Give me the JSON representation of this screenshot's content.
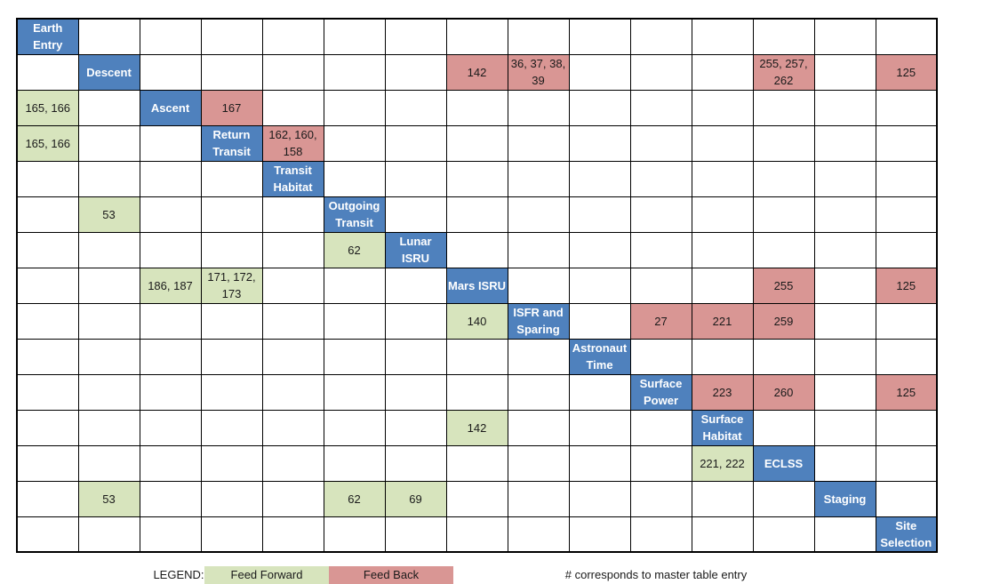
{
  "colors": {
    "diagonal": "#4f81bd",
    "feed_forward": "#d7e4bd",
    "feed_back": "#d99694"
  },
  "elements": [
    "Earth Entry",
    "Descent",
    "Ascent",
    "Return Transit",
    "Transit Habitat",
    "Outgoing Transit",
    "Lunar ISRU",
    "Mars ISRU",
    "ISFR and Sparing",
    "Astronaut Time",
    "Surface Power",
    "Surface Habitat",
    "ECLSS",
    "Staging",
    "Site Selection"
  ],
  "cells": [
    {
      "row": 1,
      "col": 7,
      "text": "142",
      "type": "feed_back"
    },
    {
      "row": 1,
      "col": 8,
      "text": "36, 37, 38, 39",
      "type": "feed_back"
    },
    {
      "row": 1,
      "col": 12,
      "text": "255, 257, 262",
      "type": "feed_back"
    },
    {
      "row": 1,
      "col": 14,
      "text": "125",
      "type": "feed_back"
    },
    {
      "row": 2,
      "col": 0,
      "text": "165, 166",
      "type": "feed_forward"
    },
    {
      "row": 2,
      "col": 3,
      "text": "167",
      "type": "feed_back"
    },
    {
      "row": 3,
      "col": 0,
      "text": "165, 166",
      "type": "feed_forward"
    },
    {
      "row": 3,
      "col": 4,
      "text": "162, 160, 158",
      "type": "feed_back"
    },
    {
      "row": 5,
      "col": 1,
      "text": "53",
      "type": "feed_forward"
    },
    {
      "row": 6,
      "col": 5,
      "text": "62",
      "type": "feed_forward"
    },
    {
      "row": 7,
      "col": 2,
      "text": "186, 187",
      "type": "feed_forward"
    },
    {
      "row": 7,
      "col": 3,
      "text": "171, 172, 173",
      "type": "feed_forward"
    },
    {
      "row": 7,
      "col": 12,
      "text": "255",
      "type": "feed_back"
    },
    {
      "row": 7,
      "col": 14,
      "text": "125",
      "type": "feed_back"
    },
    {
      "row": 8,
      "col": 7,
      "text": "140",
      "type": "feed_forward"
    },
    {
      "row": 8,
      "col": 10,
      "text": "27",
      "type": "feed_back"
    },
    {
      "row": 8,
      "col": 11,
      "text": "221",
      "type": "feed_back"
    },
    {
      "row": 8,
      "col": 12,
      "text": "259",
      "type": "feed_back"
    },
    {
      "row": 10,
      "col": 11,
      "text": "223",
      "type": "feed_back"
    },
    {
      "row": 10,
      "col": 12,
      "text": "260",
      "type": "feed_back"
    },
    {
      "row": 10,
      "col": 14,
      "text": "125",
      "type": "feed_back"
    },
    {
      "row": 11,
      "col": 7,
      "text": "142",
      "type": "feed_forward"
    },
    {
      "row": 12,
      "col": 11,
      "text": "221, 222",
      "type": "feed_forward"
    },
    {
      "row": 13,
      "col": 1,
      "text": "53",
      "type": "feed_forward"
    },
    {
      "row": 13,
      "col": 5,
      "text": "62",
      "type": "feed_forward"
    },
    {
      "row": 13,
      "col": 6,
      "text": "69",
      "type": "feed_forward"
    }
  ],
  "legend": {
    "label": "LEGEND:",
    "feed_forward": "Feed Forward",
    "feed_back": "Feed Back",
    "note": "# corresponds to master table entry"
  }
}
